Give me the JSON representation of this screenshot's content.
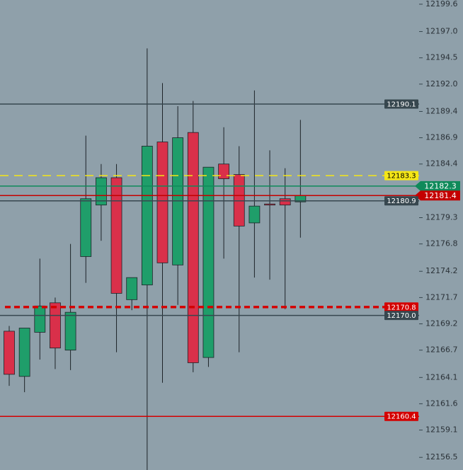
{
  "chart_data": {
    "type": "candlestick",
    "ylim": [
      12155.3,
      12200.0
    ],
    "yticks": [
      12199.6,
      {
        "value": 12197.0,
        "label": "12197.0"
      },
      12194.5,
      {
        "value": 12192.0,
        "label": "12192.0"
      },
      12189.4,
      12186.9,
      12184.4,
      12179.3,
      12176.8,
      12174.2,
      12171.7,
      12169.2,
      12166.7,
      12164.1,
      12161.6,
      12159.1,
      12156.5
    ],
    "up_color": "#1f9e6a",
    "down_color": "#d9304a",
    "series": {
      "open": [
        12168.5,
        12164.2,
        12168.4,
        12171.2,
        12166.7,
        12175.6,
        12180.5,
        12183.1,
        12171.5,
        12172.9,
        12186.5,
        12174.8,
        12187.4,
        12166.0,
        12184.4,
        12183.4,
        12178.8,
        12180.6,
        12181.1,
        12180.8
      ],
      "high": [
        12169.0,
        12168.8,
        12175.4,
        12171.7,
        12176.8,
        12187.1,
        12184.4,
        12184.4,
        12173.6,
        12195.4,
        12192.1,
        12189.9,
        12190.4,
        12184.1,
        12187.9,
        12186.1,
        12191.4,
        12185.7,
        12184.0,
        12188.6
      ],
      "low": [
        12163.3,
        12162.7,
        12165.8,
        12164.9,
        12164.8,
        12173.1,
        12177.1,
        12166.5,
        12170.5,
        12155.3,
        12163.6,
        12171.0,
        12164.6,
        12165.1,
        12175.4,
        12166.5,
        12173.6,
        12173.4,
        12170.6,
        12177.4
      ],
      "close": [
        12164.4,
        12168.8,
        12170.9,
        12166.9,
        12170.3,
        12181.1,
        12183.1,
        12172.1,
        12173.6,
        12186.1,
        12175.0,
        12186.9,
        12165.5,
        12184.1,
        12183.0,
        12178.5,
        12180.4,
        12180.5,
        12180.5,
        12181.4
      ]
    },
    "levels": [
      {
        "value": 12190.1,
        "color": "#37474f",
        "text_color": "#ffffff",
        "style": "solid",
        "tag": "box"
      },
      {
        "value": 12183.3,
        "color": "#f5e616",
        "text_color": "#000000",
        "style": "dashed",
        "tag": "box"
      },
      {
        "value": 12182.3,
        "color": "#0f8a5a",
        "text_color": "#ffffff",
        "style": "solid",
        "tag": "arrow"
      },
      {
        "value": 12181.4,
        "color": "#c40000",
        "text_color": "#ffffff",
        "style": "solid",
        "tag": "arrow"
      },
      {
        "value": 12180.9,
        "color": "#37474f",
        "text_color": "#ffffff",
        "style": "solid",
        "tag": "box"
      },
      {
        "value": 12170.8,
        "color": "#d40000",
        "text_color": "#ffffff",
        "style": "thick-dashed",
        "tag": "box"
      },
      {
        "value": 12170.0,
        "label": "12170.0",
        "color": "#37474f",
        "text_color": "#ffffff",
        "style": "solid",
        "tag": "box"
      },
      {
        "value": 12160.4,
        "color": "#d40000",
        "text_color": "#ffffff",
        "style": "solid",
        "tag": "box"
      }
    ]
  }
}
